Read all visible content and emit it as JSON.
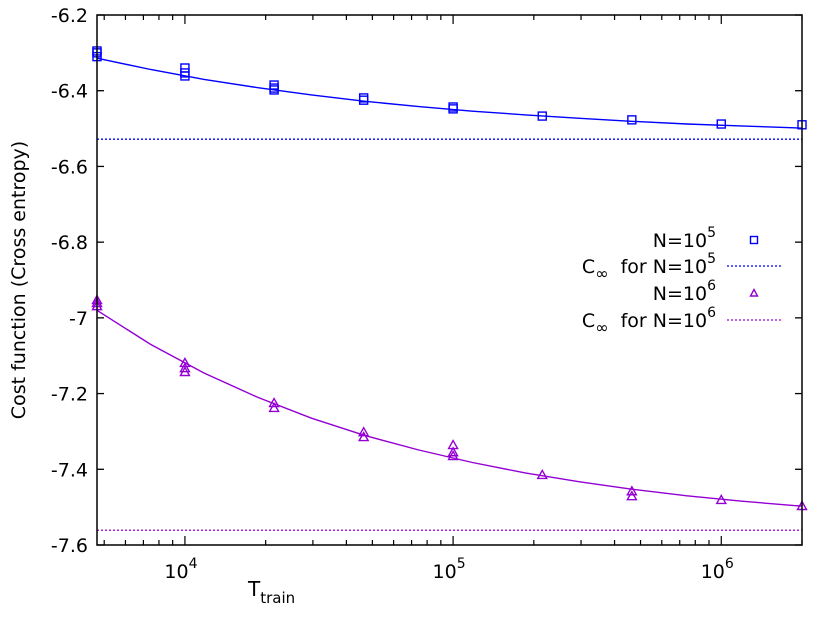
{
  "chart_data": {
    "type": "scatter",
    "title": "",
    "xlabel": "T",
    "xlabel_sub": "train",
    "ylabel": "Cost function (Cross entropy)",
    "xscale": "log",
    "xlim": [
      4700,
      2000000
    ],
    "ylim": [
      -7.6,
      -6.2
    ],
    "yticks": [
      -6.2,
      -6.4,
      -6.6,
      -6.8,
      -7,
      -7.2,
      -7.4,
      -7.6
    ],
    "ytick_labels": [
      "-6.2",
      "-6.4",
      "-6.6",
      "-6.8",
      "-7",
      "-7.2",
      "-7.4",
      "-7.6"
    ],
    "xticks": [
      10000,
      100000,
      1000000
    ],
    "xtick_labels": [
      {
        "base": "10",
        "exp": "4"
      },
      {
        "base": "10",
        "exp": "5"
      },
      {
        "base": "10",
        "exp": "6"
      }
    ],
    "grid": false,
    "legend_position": "right",
    "series": [
      {
        "name": "N=10^5",
        "label_base": "N=10",
        "label_exp": "5",
        "color": "#0000ff",
        "marker": "square",
        "points": [
          [
            4700,
            -6.295
          ],
          [
            4700,
            -6.3
          ],
          [
            4700,
            -6.31
          ],
          [
            10000,
            -6.34
          ],
          [
            10000,
            -6.353
          ],
          [
            10000,
            -6.361
          ],
          [
            21500,
            -6.385
          ],
          [
            21500,
            -6.393
          ],
          [
            21500,
            -6.398
          ],
          [
            46400,
            -6.419
          ],
          [
            46400,
            -6.425
          ],
          [
            100000,
            -6.443
          ],
          [
            100000,
            -6.448
          ],
          [
            215000,
            -6.467
          ],
          [
            464000,
            -6.477
          ],
          [
            1000000,
            -6.488
          ],
          [
            2000000,
            -6.49
          ]
        ],
        "fit": [
          [
            4700,
            -6.314
          ],
          [
            7447,
            -6.344
          ],
          [
            11803,
            -6.37
          ],
          [
            18707,
            -6.392
          ],
          [
            29648,
            -6.411
          ],
          [
            46989,
            -6.428
          ],
          [
            74473,
            -6.442
          ],
          [
            118032,
            -6.454
          ],
          [
            187068,
            -6.464
          ],
          [
            296483,
            -6.473
          ],
          [
            469894,
            -6.481
          ],
          [
            744732,
            -6.488
          ],
          [
            1180321,
            -6.493
          ],
          [
            1870682,
            -6.498
          ],
          [
            2000000,
            -6.499
          ]
        ]
      },
      {
        "name": "C∞ for N=10^5",
        "label_prefix": "C",
        "label_sub": "∞",
        "label_mid": " for N=10",
        "label_exp": "5",
        "color": "#0000ff",
        "style": "dotted",
        "value": -6.528
      },
      {
        "name": "N=10^6",
        "label_base": "N=10",
        "label_exp": "6",
        "color": "#9400d3",
        "marker": "triangle",
        "points": [
          [
            4700,
            -6.953
          ],
          [
            4700,
            -6.961
          ],
          [
            4700,
            -6.969
          ],
          [
            10000,
            -7.119
          ],
          [
            10000,
            -7.133
          ],
          [
            10000,
            -7.143
          ],
          [
            21500,
            -7.225
          ],
          [
            21500,
            -7.238
          ],
          [
            46400,
            -7.302
          ],
          [
            46400,
            -7.315
          ],
          [
            100000,
            -7.336
          ],
          [
            100000,
            -7.355
          ],
          [
            100000,
            -7.365
          ],
          [
            215000,
            -7.415
          ],
          [
            464000,
            -7.458
          ],
          [
            464000,
            -7.471
          ],
          [
            1000000,
            -7.481
          ],
          [
            2000000,
            -7.497
          ]
        ],
        "fit": [
          [
            4700,
            -6.98
          ],
          [
            7447,
            -7.07
          ],
          [
            11803,
            -7.146
          ],
          [
            18707,
            -7.21
          ],
          [
            29648,
            -7.265
          ],
          [
            46989,
            -7.311
          ],
          [
            74473,
            -7.349
          ],
          [
            118032,
            -7.382
          ],
          [
            187068,
            -7.41
          ],
          [
            296483,
            -7.433
          ],
          [
            469894,
            -7.453
          ],
          [
            744732,
            -7.47
          ],
          [
            1180321,
            -7.484
          ],
          [
            1870682,
            -7.496
          ],
          [
            2000000,
            -7.497
          ]
        ]
      },
      {
        "name": "C∞ for N=10^6",
        "label_prefix": "C",
        "label_sub": "∞",
        "label_mid": " for N=10",
        "label_exp": "6",
        "color": "#9400d3",
        "style": "dotted",
        "value": -7.561
      }
    ]
  }
}
